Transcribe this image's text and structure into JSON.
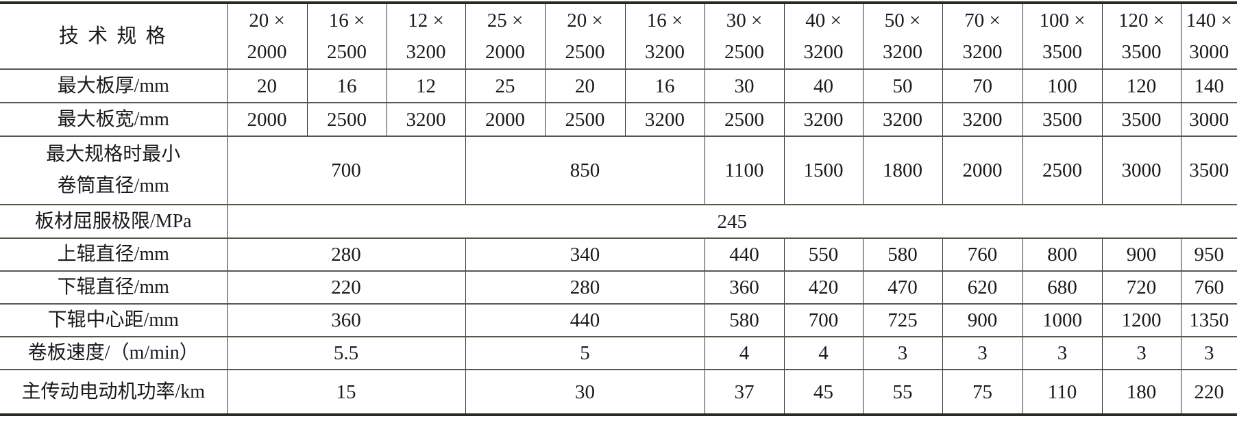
{
  "table": {
    "header_label": "技 术 规 格",
    "specs": [
      [
        "20 ×",
        "2000"
      ],
      [
        "16 ×",
        "2500"
      ],
      [
        "12 ×",
        "3200"
      ],
      [
        "25 ×",
        "2000"
      ],
      [
        "20 ×",
        "2500"
      ],
      [
        "16 ×",
        "3200"
      ],
      [
        "30 ×",
        "2500"
      ],
      [
        "40 ×",
        "3200"
      ],
      [
        "50 ×",
        "3200"
      ],
      [
        "70 ×",
        "3200"
      ],
      [
        "100 ×",
        "3500"
      ],
      [
        "120 ×",
        "3500"
      ],
      [
        "140 ×",
        "3000"
      ]
    ],
    "rows": {
      "thickness": {
        "label": "最大板厚/mm",
        "values": [
          "20",
          "16",
          "12",
          "25",
          "20",
          "16",
          "30",
          "40",
          "50",
          "70",
          "100",
          "120",
          "140"
        ]
      },
      "width": {
        "label": "最大板宽/mm",
        "values": [
          "2000",
          "2500",
          "3200",
          "2000",
          "2500",
          "3200",
          "2500",
          "3200",
          "3200",
          "3200",
          "3500",
          "3500",
          "3000"
        ]
      },
      "min_drum": {
        "label": [
          "最大规格时最小",
          "卷筒直径/mm"
        ],
        "values": [
          "700",
          "850",
          "1100",
          "1500",
          "1800",
          "2000",
          "2500",
          "3000",
          "3500"
        ]
      },
      "yield": {
        "label": "板材屈服极限/MPa",
        "value": "245"
      },
      "upper_roll": {
        "label": "上辊直径/mm",
        "values": [
          "280",
          "340",
          "440",
          "550",
          "580",
          "760",
          "800",
          "900",
          "950"
        ]
      },
      "lower_roll": {
        "label": "下辊直径/mm",
        "values": [
          "220",
          "280",
          "360",
          "420",
          "470",
          "620",
          "680",
          "720",
          "760"
        ]
      },
      "center_dist": {
        "label": "下辊中心距/mm",
        "values": [
          "360",
          "440",
          "580",
          "700",
          "725",
          "900",
          "1000",
          "1200",
          "1350"
        ]
      },
      "speed": {
        "label": "卷板速度/（m/min）",
        "values": [
          "5.5",
          "5",
          "4",
          "4",
          "3",
          "3",
          "3",
          "3",
          "3"
        ]
      },
      "power": {
        "label": "主传动电动机功率/km",
        "values": [
          "15",
          "30",
          "37",
          "45",
          "55",
          "75",
          "110",
          "180",
          "220"
        ]
      }
    }
  }
}
